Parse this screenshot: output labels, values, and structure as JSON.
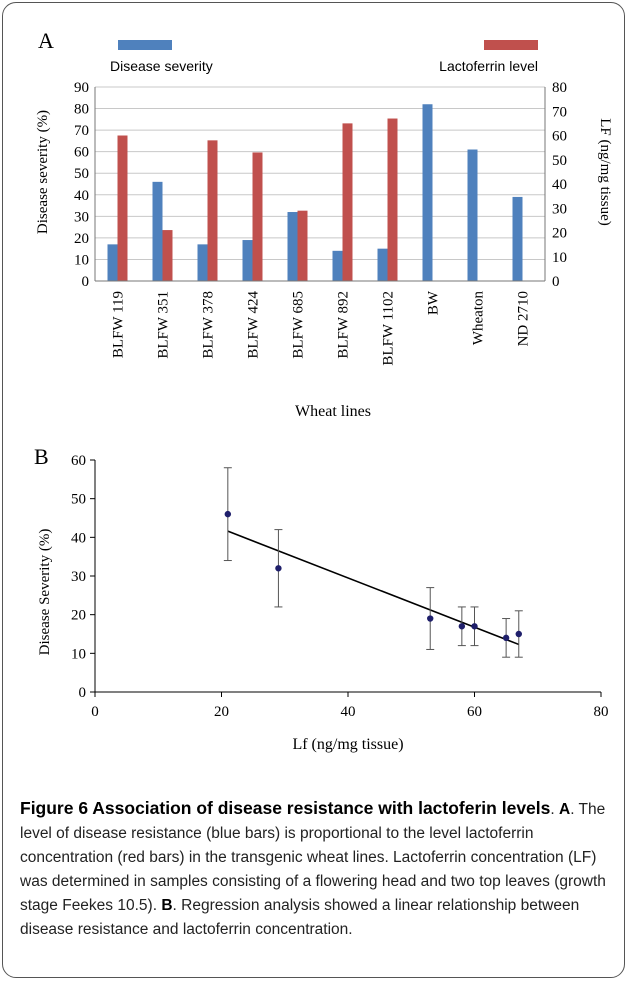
{
  "colors": {
    "severity": "#4f81bd",
    "lactoferrin": "#c0504d",
    "point": "#1f1f6b"
  },
  "chart_data": [
    {
      "type": "bar",
      "panel_label": "A",
      "categories": [
        "BLFW 119",
        "BLFW 351",
        "BLFW 378",
        "BLFW 424",
        "BLFW 685",
        "BLFW 892",
        "BLFW 1102",
        "BW",
        "Wheaton",
        "ND 2710"
      ],
      "series": [
        {
          "name": "Disease severity",
          "axis": "left",
          "values": [
            17,
            46,
            17,
            19,
            32,
            14,
            15,
            82,
            61,
            39
          ]
        },
        {
          "name": "Lactoferrin level",
          "axis": "right",
          "values": [
            60,
            21,
            58,
            53,
            29,
            65,
            67,
            null,
            null,
            null
          ]
        }
      ],
      "xlabel": "Wheat lines",
      "ylabel": "Disease severity (%)",
      "y2label": "LF (ng/mg tissue)",
      "ylim": [
        0,
        90
      ],
      "y2lim": [
        0,
        80
      ],
      "yticks": [
        0,
        10,
        20,
        30,
        40,
        50,
        60,
        70,
        80,
        90
      ],
      "y2ticks": [
        0,
        10,
        20,
        30,
        40,
        50,
        60,
        70,
        80
      ],
      "legend_position": "top"
    },
    {
      "type": "scatter",
      "panel_label": "B",
      "points": [
        {
          "x": 21,
          "y": 46,
          "err": 12
        },
        {
          "x": 29,
          "y": 32,
          "err": 10
        },
        {
          "x": 53,
          "y": 19,
          "err": 8
        },
        {
          "x": 58,
          "y": 17,
          "err": 5
        },
        {
          "x": 60,
          "y": 17,
          "err": 5
        },
        {
          "x": 65,
          "y": 14,
          "err": 5
        },
        {
          "x": 67,
          "y": 15,
          "err": 6
        }
      ],
      "trendline": {
        "x1": 21,
        "y1": 41.6,
        "x2": 67,
        "y2": 12.3
      },
      "xlabel": "Lf (ng/mg tissue)",
      "ylabel": "Disease Severity (%)",
      "xlim": [
        0,
        80
      ],
      "ylim": [
        0,
        60
      ],
      "xticks": [
        0,
        20,
        40,
        60,
        80
      ],
      "yticks": [
        0,
        10,
        20,
        30,
        40,
        50,
        60
      ]
    }
  ],
  "caption": {
    "title": "Figure 6 Association of disease resistance with lactoferin levels",
    "p1": ". ",
    "a": "A",
    "t1": ". The level of disease resistance (blue bars) is proportional to the level lactoferrin concentration (red bars) in the transgenic wheat lines. Lactoferrin concentration (LF) was determined in samples consisting of a flowering head and two top leaves (growth stage Feekes 10.5). ",
    "b": "B",
    "t2": ". Regression analysis showed a linear relationship between disease resistance and lactoferrin concentration."
  }
}
